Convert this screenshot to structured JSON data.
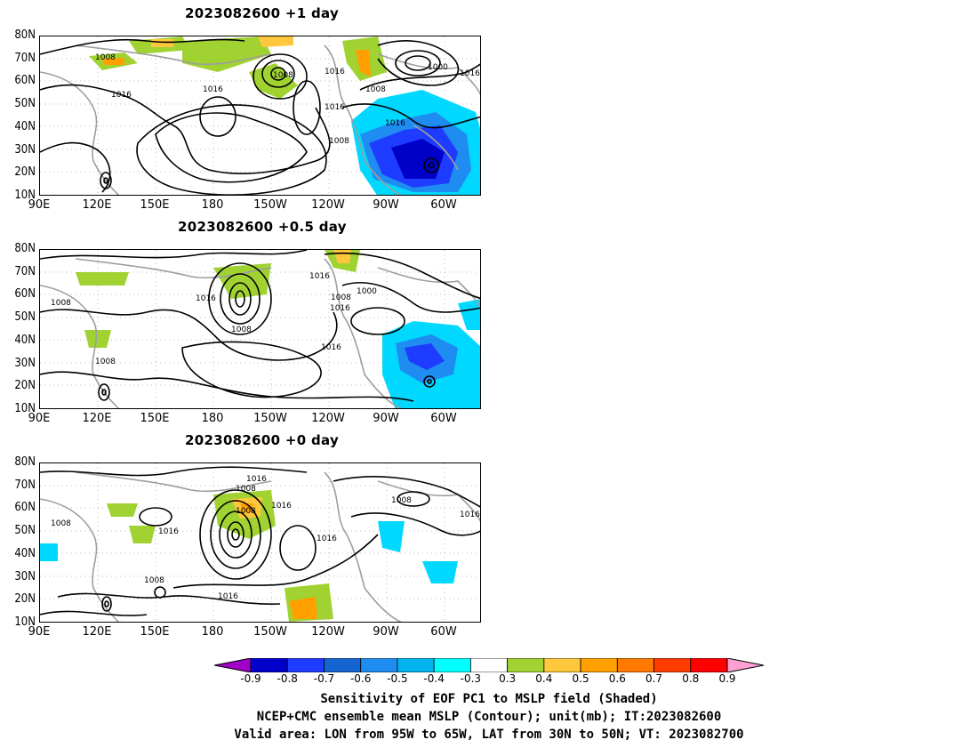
{
  "panels": [
    {
      "title": "2023082600  +1  day"
    },
    {
      "title": "2023082600  +0.5  day"
    },
    {
      "title": "2023082600  +0  day"
    }
  ],
  "lat_labels": [
    "80N",
    "70N",
    "60N",
    "50N",
    "40N",
    "30N",
    "20N",
    "10N"
  ],
  "lon_labels": [
    "90E",
    "120E",
    "150E",
    "180",
    "150W",
    "120W",
    "90W",
    "60W"
  ],
  "contour_labels": {
    "p1": [
      "1008",
      "1016",
      "1016",
      "1008",
      "1016",
      "1008",
      "1000",
      "1016",
      "1016",
      "1016",
      "1008"
    ],
    "p2": [
      "1008",
      "1016",
      "1008",
      "1016",
      "1008",
      "1000",
      "1016",
      "1016",
      "1008"
    ],
    "p3": [
      "1008",
      "1016",
      "1016",
      "1008",
      "1016",
      "1008",
      "1016",
      "1008",
      "1016",
      "1016"
    ]
  },
  "colorbar": {
    "ticks": [
      "-0.9",
      "-0.8",
      "-0.7",
      "-0.6",
      "-0.5",
      "-0.4",
      "-0.3",
      "0.3",
      "0.4",
      "0.5",
      "0.6",
      "0.7",
      "0.8",
      "0.9"
    ],
    "colors": [
      "#a000c8",
      "#0000c8",
      "#1e3cff",
      "#1464d2",
      "#1e8cf0",
      "#00b4f0",
      "#00ffff",
      "#ffffff",
      "#a0d232",
      "#ffc83c",
      "#ffa000",
      "#ff7800",
      "#ff3c00",
      "#ff0000",
      "#ffa0d2"
    ]
  },
  "caption": {
    "line1": "Sensitivity of EOF PC1 to MSLP field (Shaded)",
    "line2": "NCEP+CMC ensemble mean MSLP (Contour); unit(mb); IT:2023082600",
    "line3": "Valid area: LON from 95W to 65W, LAT from 30N to 50N; VT: 2023082700"
  }
}
